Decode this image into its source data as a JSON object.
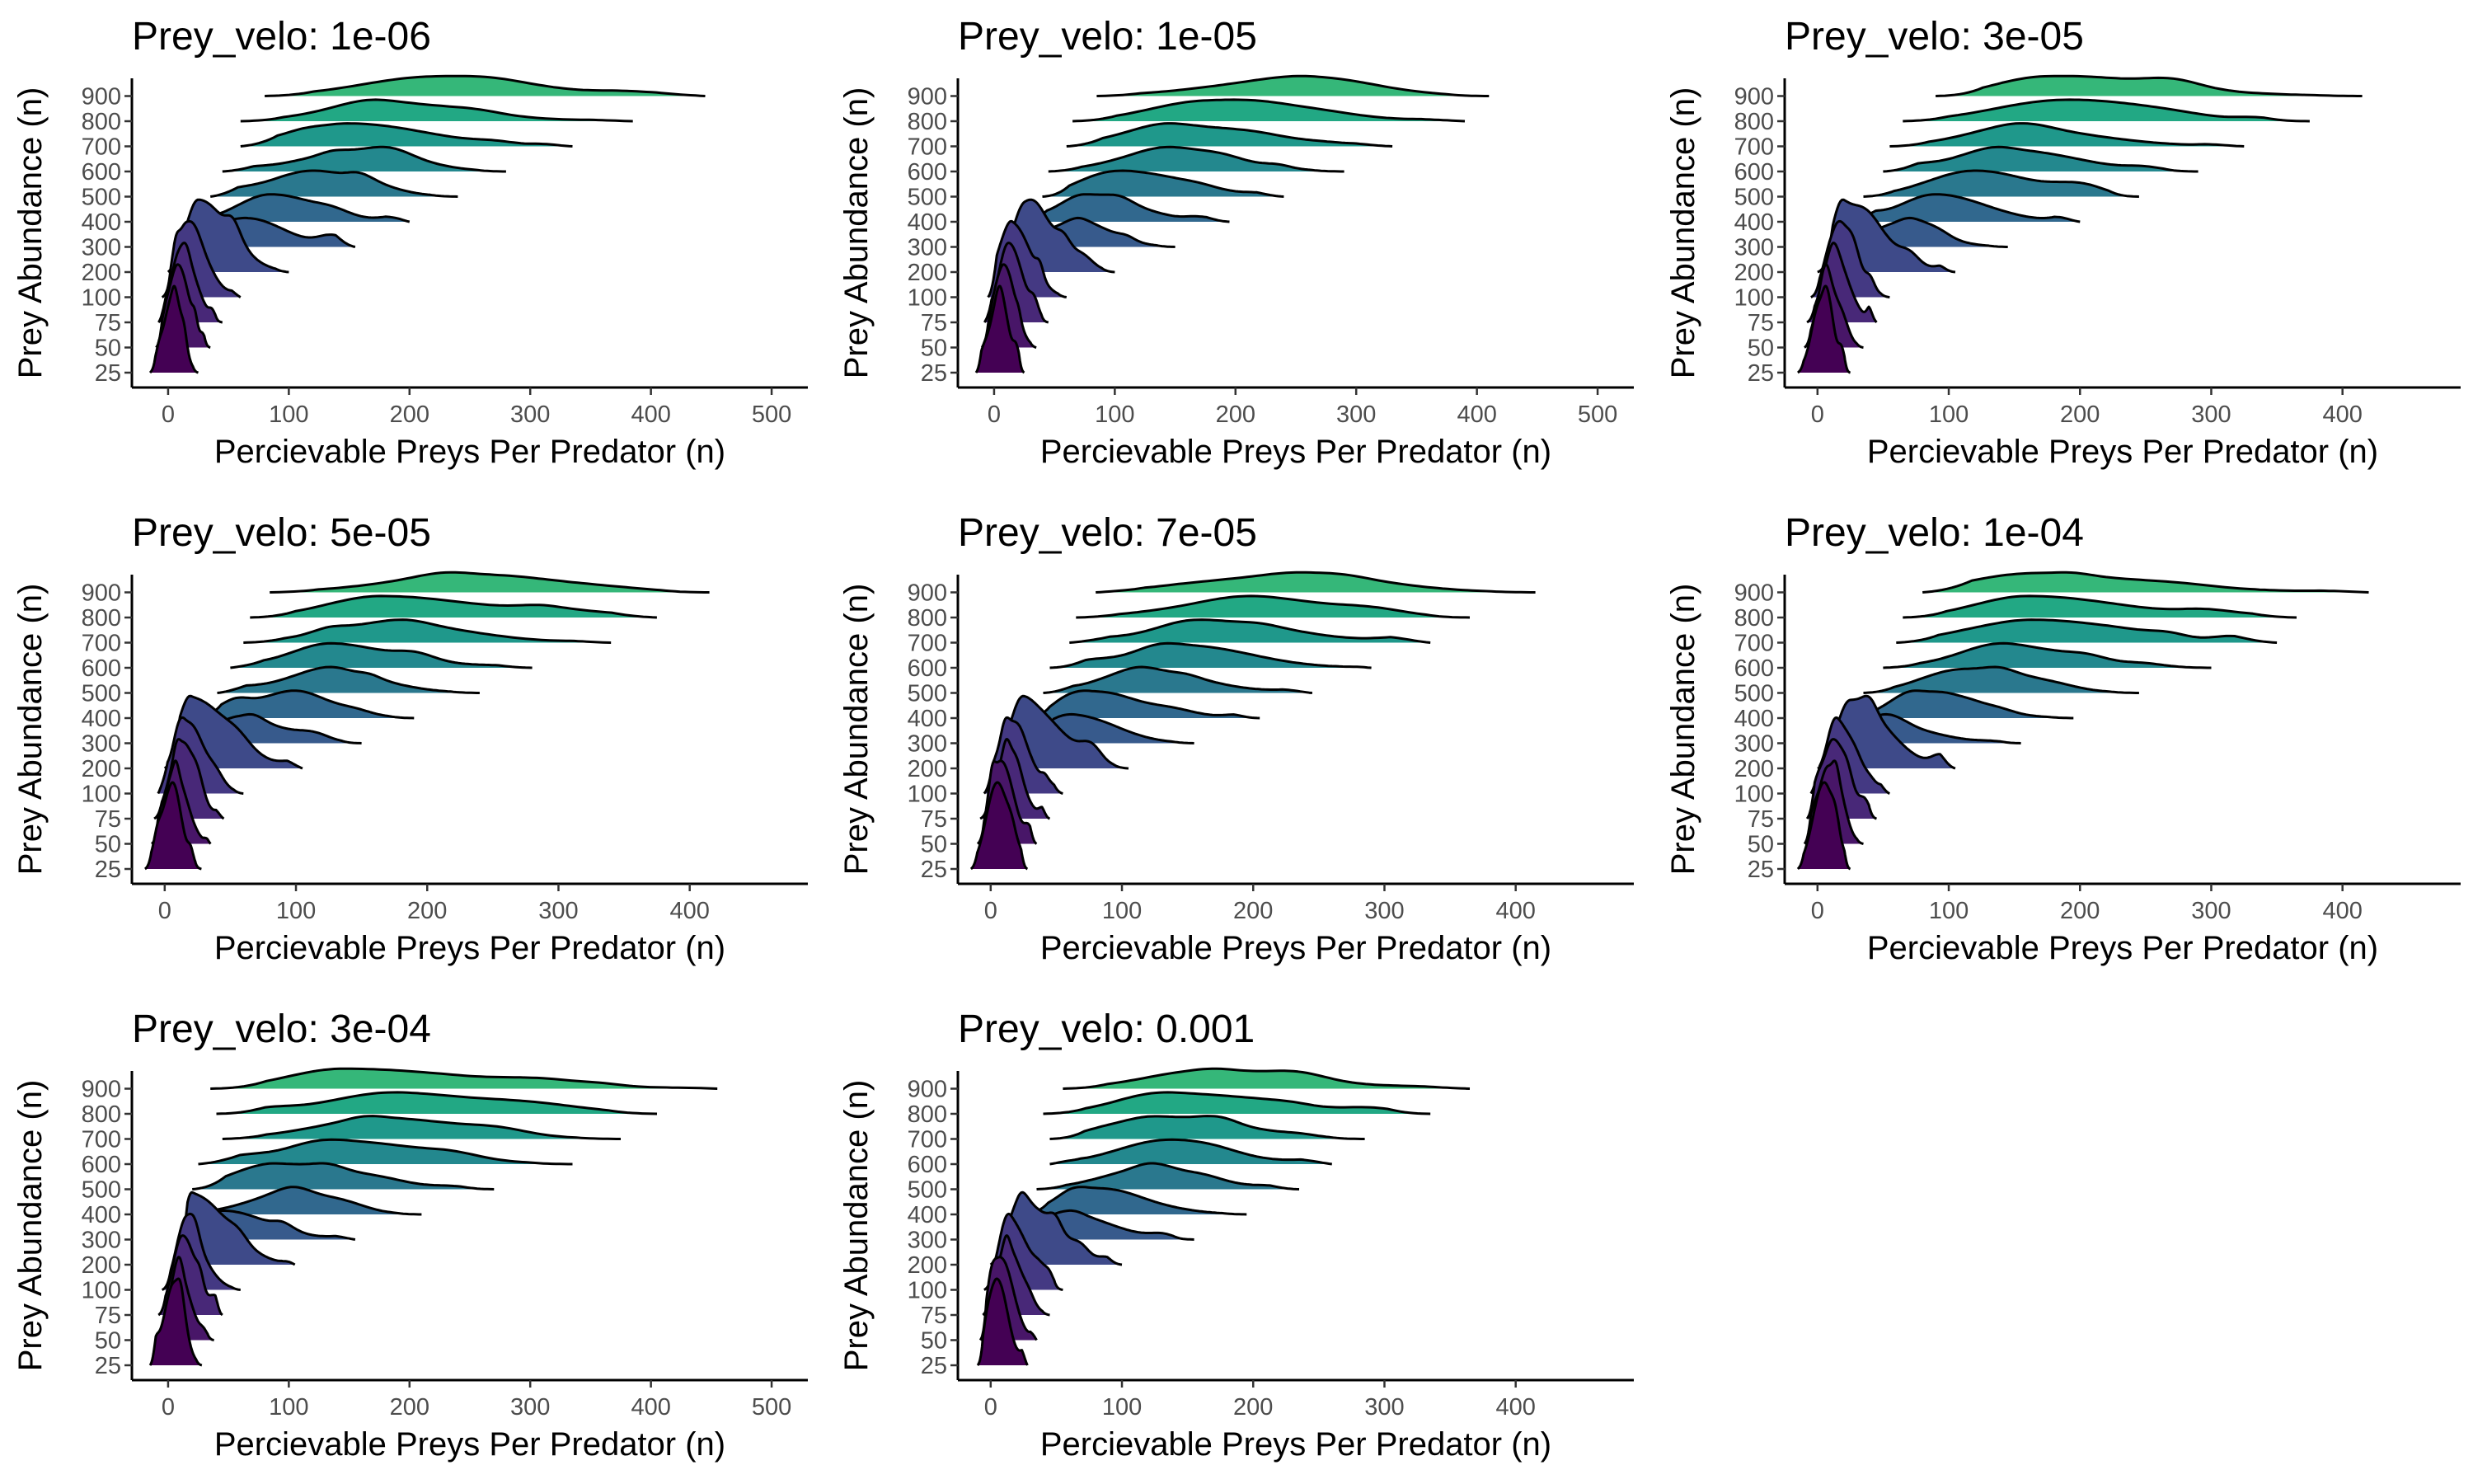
{
  "figure": {
    "xlabel": "Percievable Preys Per Predator (n)",
    "ylabel": "Prey Abundance (n)",
    "title_prefix": "Prey_velo: "
  },
  "chart_data": [
    {
      "type": "ridgeline",
      "title": "Prey_velo: 1e-06",
      "velo": "1e-06",
      "xlabel": "Percievable Preys Per Predator (n)",
      "ylabel": "Prey Abundance (n)",
      "xlim": [
        -30,
        530
      ],
      "xticks": [
        0,
        100,
        200,
        300,
        400,
        500
      ],
      "categories": [
        "25",
        "50",
        "75",
        "100",
        "200",
        "300",
        "400",
        "500",
        "600",
        "700",
        "800",
        "900"
      ],
      "series": [
        {
          "name": "25",
          "min": -15,
          "max": 25,
          "mode": 5,
          "color": "#440154"
        },
        {
          "name": "50",
          "min": -10,
          "max": 35,
          "mode": 8,
          "color": "#481668"
        },
        {
          "name": "75",
          "min": -8,
          "max": 45,
          "mode": 12,
          "color": "#482878"
        },
        {
          "name": "100",
          "min": -5,
          "max": 60,
          "mode": 15,
          "color": "#443983"
        },
        {
          "name": "200",
          "min": 0,
          "max": 100,
          "mode": 25,
          "color": "#3e4a89"
        },
        {
          "name": "300",
          "min": 10,
          "max": 155,
          "mode": 65,
          "color": "#375a8c"
        },
        {
          "name": "400",
          "min": 20,
          "max": 200,
          "mode": 85,
          "color": "#31688e"
        },
        {
          "name": "500",
          "min": 35,
          "max": 240,
          "mode": 120,
          "color": "#2a788e"
        },
        {
          "name": "600",
          "min": 45,
          "max": 280,
          "mode": 165,
          "color": "#23888e"
        },
        {
          "name": "700",
          "min": 60,
          "max": 335,
          "mode": 150,
          "color": "#1f988b"
        },
        {
          "name": "800",
          "min": 60,
          "max": 385,
          "mode": 175,
          "color": "#22a884"
        },
        {
          "name": "900",
          "min": 80,
          "max": 445,
          "mode": 220,
          "color": "#35b779"
        }
      ]
    },
    {
      "type": "ridgeline",
      "title": "Prey_velo: 1e-05",
      "velo": "1e-05",
      "xlabel": "Percievable Preys Per Predator (n)",
      "ylabel": "Prey Abundance (n)",
      "xlim": [
        -30,
        530
      ],
      "xticks": [
        0,
        100,
        200,
        300,
        400,
        500
      ],
      "categories": [
        "25",
        "50",
        "75",
        "100",
        "200",
        "300",
        "400",
        "500",
        "600",
        "700",
        "800",
        "900"
      ],
      "series": [
        {
          "name": "25",
          "min": -15,
          "max": 25,
          "mode": 5,
          "color": "#440154"
        },
        {
          "name": "50",
          "min": -10,
          "max": 35,
          "mode": 8,
          "color": "#481668"
        },
        {
          "name": "75",
          "min": -8,
          "max": 45,
          "mode": 12,
          "color": "#482878"
        },
        {
          "name": "100",
          "min": -5,
          "max": 60,
          "mode": 15,
          "color": "#443983"
        },
        {
          "name": "200",
          "min": 0,
          "max": 100,
          "mode": 25,
          "color": "#3e4a89"
        },
        {
          "name": "300",
          "min": 10,
          "max": 150,
          "mode": 70,
          "color": "#375a8c"
        },
        {
          "name": "400",
          "min": 25,
          "max": 195,
          "mode": 75,
          "color": "#31688e"
        },
        {
          "name": "500",
          "min": 40,
          "max": 240,
          "mode": 115,
          "color": "#2a788e"
        },
        {
          "name": "600",
          "min": 45,
          "max": 290,
          "mode": 150,
          "color": "#23888e"
        },
        {
          "name": "700",
          "min": 60,
          "max": 330,
          "mode": 150,
          "color": "#1f988b"
        },
        {
          "name": "800",
          "min": 65,
          "max": 390,
          "mode": 175,
          "color": "#22a884"
        },
        {
          "name": "900",
          "min": 85,
          "max": 410,
          "mode": 250,
          "color": "#35b779"
        }
      ]
    },
    {
      "type": "ridgeline",
      "title": "Prey_velo: 3e-05",
      "velo": "3e-05",
      "xlabel": "Percievable Preys Per Predator (n)",
      "ylabel": "Prey Abundance (n)",
      "xlim": [
        -25,
        490
      ],
      "xticks": [
        0,
        100,
        200,
        300,
        400
      ],
      "categories": [
        "25",
        "50",
        "75",
        "100",
        "200",
        "300",
        "400",
        "500",
        "600",
        "700",
        "800",
        "900"
      ],
      "series": [
        {
          "name": "25",
          "min": -15,
          "max": 25,
          "mode": 5,
          "color": "#440154"
        },
        {
          "name": "50",
          "min": -10,
          "max": 35,
          "mode": 8,
          "color": "#481668"
        },
        {
          "name": "75",
          "min": -8,
          "max": 45,
          "mode": 12,
          "color": "#482878"
        },
        {
          "name": "100",
          "min": -5,
          "max": 55,
          "mode": 15,
          "color": "#443983"
        },
        {
          "name": "200",
          "min": 0,
          "max": 105,
          "mode": 20,
          "color": "#3e4a89"
        },
        {
          "name": "300",
          "min": 10,
          "max": 145,
          "mode": 60,
          "color": "#375a8c"
        },
        {
          "name": "400",
          "min": 25,
          "max": 200,
          "mode": 90,
          "color": "#31688e"
        },
        {
          "name": "500",
          "min": 35,
          "max": 245,
          "mode": 120,
          "color": "#2a788e"
        },
        {
          "name": "600",
          "min": 50,
          "max": 290,
          "mode": 150,
          "color": "#23888e"
        },
        {
          "name": "700",
          "min": 55,
          "max": 325,
          "mode": 150,
          "color": "#1f988b"
        },
        {
          "name": "800",
          "min": 65,
          "max": 375,
          "mode": 180,
          "color": "#22a884"
        },
        {
          "name": "900",
          "min": 90,
          "max": 415,
          "mode": 175,
          "color": "#35b779"
        }
      ]
    },
    {
      "type": "ridgeline",
      "title": "Prey_velo: 5e-05",
      "velo": "5e-05",
      "xlabel": "Percievable Preys Per Predator (n)",
      "ylabel": "Prey Abundance (n)",
      "xlim": [
        -25,
        490
      ],
      "xticks": [
        0,
        100,
        200,
        300,
        400
      ],
      "categories": [
        "25",
        "50",
        "75",
        "100",
        "200",
        "300",
        "400",
        "500",
        "600",
        "700",
        "800",
        "900"
      ],
      "series": [
        {
          "name": "25",
          "min": -15,
          "max": 28,
          "mode": 5,
          "color": "#440154"
        },
        {
          "name": "50",
          "min": -10,
          "max": 35,
          "mode": 8,
          "color": "#481668"
        },
        {
          "name": "75",
          "min": -8,
          "max": 45,
          "mode": 12,
          "color": "#482878"
        },
        {
          "name": "100",
          "min": -5,
          "max": 60,
          "mode": 15,
          "color": "#443983"
        },
        {
          "name": "200",
          "min": 0,
          "max": 105,
          "mode": 20,
          "color": "#3e4a89"
        },
        {
          "name": "300",
          "min": 10,
          "max": 150,
          "mode": 55,
          "color": "#375a8c"
        },
        {
          "name": "400",
          "min": 25,
          "max": 190,
          "mode": 95,
          "color": "#31688e"
        },
        {
          "name": "500",
          "min": 40,
          "max": 240,
          "mode": 125,
          "color": "#2a788e"
        },
        {
          "name": "600",
          "min": 50,
          "max": 280,
          "mode": 125,
          "color": "#23888e"
        },
        {
          "name": "700",
          "min": 60,
          "max": 340,
          "mode": 170,
          "color": "#1f988b"
        },
        {
          "name": "800",
          "min": 65,
          "max": 375,
          "mode": 165,
          "color": "#22a884"
        },
        {
          "name": "900",
          "min": 80,
          "max": 415,
          "mode": 230,
          "color": "#35b779"
        }
      ]
    },
    {
      "type": "ridgeline",
      "title": "Prey_velo: 7e-05",
      "velo": "7e-05",
      "xlabel": "Percievable Preys Per Predator (n)",
      "ylabel": "Prey Abundance (n)",
      "xlim": [
        -25,
        490
      ],
      "xticks": [
        0,
        100,
        200,
        300,
        400
      ],
      "categories": [
        "25",
        "50",
        "75",
        "100",
        "200",
        "300",
        "400",
        "500",
        "600",
        "700",
        "800",
        "900"
      ],
      "series": [
        {
          "name": "25",
          "min": -15,
          "max": 28,
          "mode": 5,
          "color": "#440154"
        },
        {
          "name": "50",
          "min": -10,
          "max": 35,
          "mode": 8,
          "color": "#481668"
        },
        {
          "name": "75",
          "min": -8,
          "max": 45,
          "mode": 12,
          "color": "#482878"
        },
        {
          "name": "100",
          "min": -5,
          "max": 55,
          "mode": 15,
          "color": "#443983"
        },
        {
          "name": "200",
          "min": 0,
          "max": 105,
          "mode": 25,
          "color": "#3e4a89"
        },
        {
          "name": "300",
          "min": 10,
          "max": 155,
          "mode": 65,
          "color": "#375a8c"
        },
        {
          "name": "400",
          "min": 25,
          "max": 205,
          "mode": 75,
          "color": "#31688e"
        },
        {
          "name": "500",
          "min": 40,
          "max": 245,
          "mode": 115,
          "color": "#2a788e"
        },
        {
          "name": "600",
          "min": 45,
          "max": 290,
          "mode": 150,
          "color": "#23888e"
        },
        {
          "name": "700",
          "min": 60,
          "max": 335,
          "mode": 175,
          "color": "#1f988b"
        },
        {
          "name": "800",
          "min": 65,
          "max": 365,
          "mode": 205,
          "color": "#22a884"
        },
        {
          "name": "900",
          "min": 80,
          "max": 415,
          "mode": 240,
          "color": "#35b779"
        }
      ]
    },
    {
      "type": "ridgeline",
      "title": "Prey_velo: 1e-04",
      "velo": "1e-04",
      "xlabel": "Percievable Preys Per Predator (n)",
      "ylabel": "Prey Abundance (n)",
      "xlim": [
        -25,
        490
      ],
      "xticks": [
        0,
        100,
        200,
        300,
        400
      ],
      "categories": [
        "25",
        "50",
        "75",
        "100",
        "200",
        "300",
        "400",
        "500",
        "600",
        "700",
        "800",
        "900"
      ],
      "series": [
        {
          "name": "25",
          "min": -15,
          "max": 25,
          "mode": 5,
          "color": "#440154"
        },
        {
          "name": "50",
          "min": -10,
          "max": 35,
          "mode": 8,
          "color": "#481668"
        },
        {
          "name": "75",
          "min": -8,
          "max": 45,
          "mode": 12,
          "color": "#482878"
        },
        {
          "name": "100",
          "min": -5,
          "max": 55,
          "mode": 15,
          "color": "#443983"
        },
        {
          "name": "200",
          "min": 0,
          "max": 105,
          "mode": 25,
          "color": "#3e4a89"
        },
        {
          "name": "300",
          "min": 15,
          "max": 155,
          "mode": 45,
          "color": "#375a8c"
        },
        {
          "name": "400",
          "min": 25,
          "max": 195,
          "mode": 75,
          "color": "#31688e"
        },
        {
          "name": "500",
          "min": 35,
          "max": 245,
          "mode": 110,
          "color": "#2a788e"
        },
        {
          "name": "600",
          "min": 50,
          "max": 300,
          "mode": 150,
          "color": "#23888e"
        },
        {
          "name": "700",
          "min": 60,
          "max": 350,
          "mode": 165,
          "color": "#1f988b"
        },
        {
          "name": "800",
          "min": 65,
          "max": 365,
          "mode": 160,
          "color": "#22a884"
        },
        {
          "name": "900",
          "min": 80,
          "max": 420,
          "mode": 170,
          "color": "#35b779"
        }
      ]
    },
    {
      "type": "ridgeline",
      "title": "Prey_velo: 3e-04",
      "velo": "3e-04",
      "xlabel": "Percievable Preys Per Predator (n)",
      "ylabel": "Prey Abundance (n)",
      "xlim": [
        -30,
        530
      ],
      "xticks": [
        0,
        100,
        200,
        300,
        400,
        500
      ],
      "categories": [
        "25",
        "50",
        "75",
        "100",
        "200",
        "300",
        "400",
        "500",
        "600",
        "700",
        "800",
        "900"
      ],
      "series": [
        {
          "name": "25",
          "min": -15,
          "max": 28,
          "mode": 5,
          "color": "#440154"
        },
        {
          "name": "50",
          "min": -10,
          "max": 38,
          "mode": 8,
          "color": "#481668"
        },
        {
          "name": "75",
          "min": -8,
          "max": 45,
          "mode": 12,
          "color": "#482878"
        },
        {
          "name": "100",
          "min": -5,
          "max": 60,
          "mode": 15,
          "color": "#443983"
        },
        {
          "name": "200",
          "min": 5,
          "max": 105,
          "mode": 20,
          "color": "#3e4a89"
        },
        {
          "name": "300",
          "min": 10,
          "max": 155,
          "mode": 45,
          "color": "#375a8c"
        },
        {
          "name": "400",
          "min": 15,
          "max": 210,
          "mode": 100,
          "color": "#31688e"
        },
        {
          "name": "500",
          "min": 20,
          "max": 270,
          "mode": 90,
          "color": "#2a788e"
        },
        {
          "name": "600",
          "min": 25,
          "max": 335,
          "mode": 150,
          "color": "#23888e"
        },
        {
          "name": "700",
          "min": 45,
          "max": 375,
          "mode": 180,
          "color": "#1f988b"
        },
        {
          "name": "800",
          "min": 40,
          "max": 405,
          "mode": 200,
          "color": "#22a884"
        },
        {
          "name": "900",
          "min": 35,
          "max": 455,
          "mode": 145,
          "color": "#35b779"
        }
      ]
    },
    {
      "type": "ridgeline",
      "title": "Prey_velo: 0.001",
      "velo": "0.001",
      "xlabel": "Percievable Preys Per Predator (n)",
      "ylabel": "Prey Abundance (n)",
      "xlim": [
        -25,
        490
      ],
      "xticks": [
        0,
        100,
        200,
        300,
        400
      ],
      "categories": [
        "25",
        "50",
        "75",
        "100",
        "200",
        "300",
        "400",
        "500",
        "600",
        "700",
        "800",
        "900"
      ],
      "series": [
        {
          "name": "25",
          "min": -10,
          "max": 28,
          "mode": 5,
          "color": "#440154"
        },
        {
          "name": "50",
          "min": -8,
          "max": 35,
          "mode": 8,
          "color": "#481668"
        },
        {
          "name": "75",
          "min": -6,
          "max": 45,
          "mode": 12,
          "color": "#482878"
        },
        {
          "name": "100",
          "min": -5,
          "max": 55,
          "mode": 15,
          "color": "#443983"
        },
        {
          "name": "200",
          "min": 0,
          "max": 100,
          "mode": 25,
          "color": "#3e4a89"
        },
        {
          "name": "300",
          "min": 10,
          "max": 155,
          "mode": 55,
          "color": "#375a8c"
        },
        {
          "name": "400",
          "min": 25,
          "max": 195,
          "mode": 75,
          "color": "#31688e"
        },
        {
          "name": "500",
          "min": 35,
          "max": 235,
          "mode": 120,
          "color": "#2a788e"
        },
        {
          "name": "600",
          "min": 45,
          "max": 260,
          "mode": 135,
          "color": "#23888e"
        },
        {
          "name": "700",
          "min": 45,
          "max": 285,
          "mode": 125,
          "color": "#1f988b"
        },
        {
          "name": "800",
          "min": 40,
          "max": 335,
          "mode": 140,
          "color": "#22a884"
        },
        {
          "name": "900",
          "min": 55,
          "max": 365,
          "mode": 165,
          "color": "#35b779"
        }
      ]
    }
  ]
}
